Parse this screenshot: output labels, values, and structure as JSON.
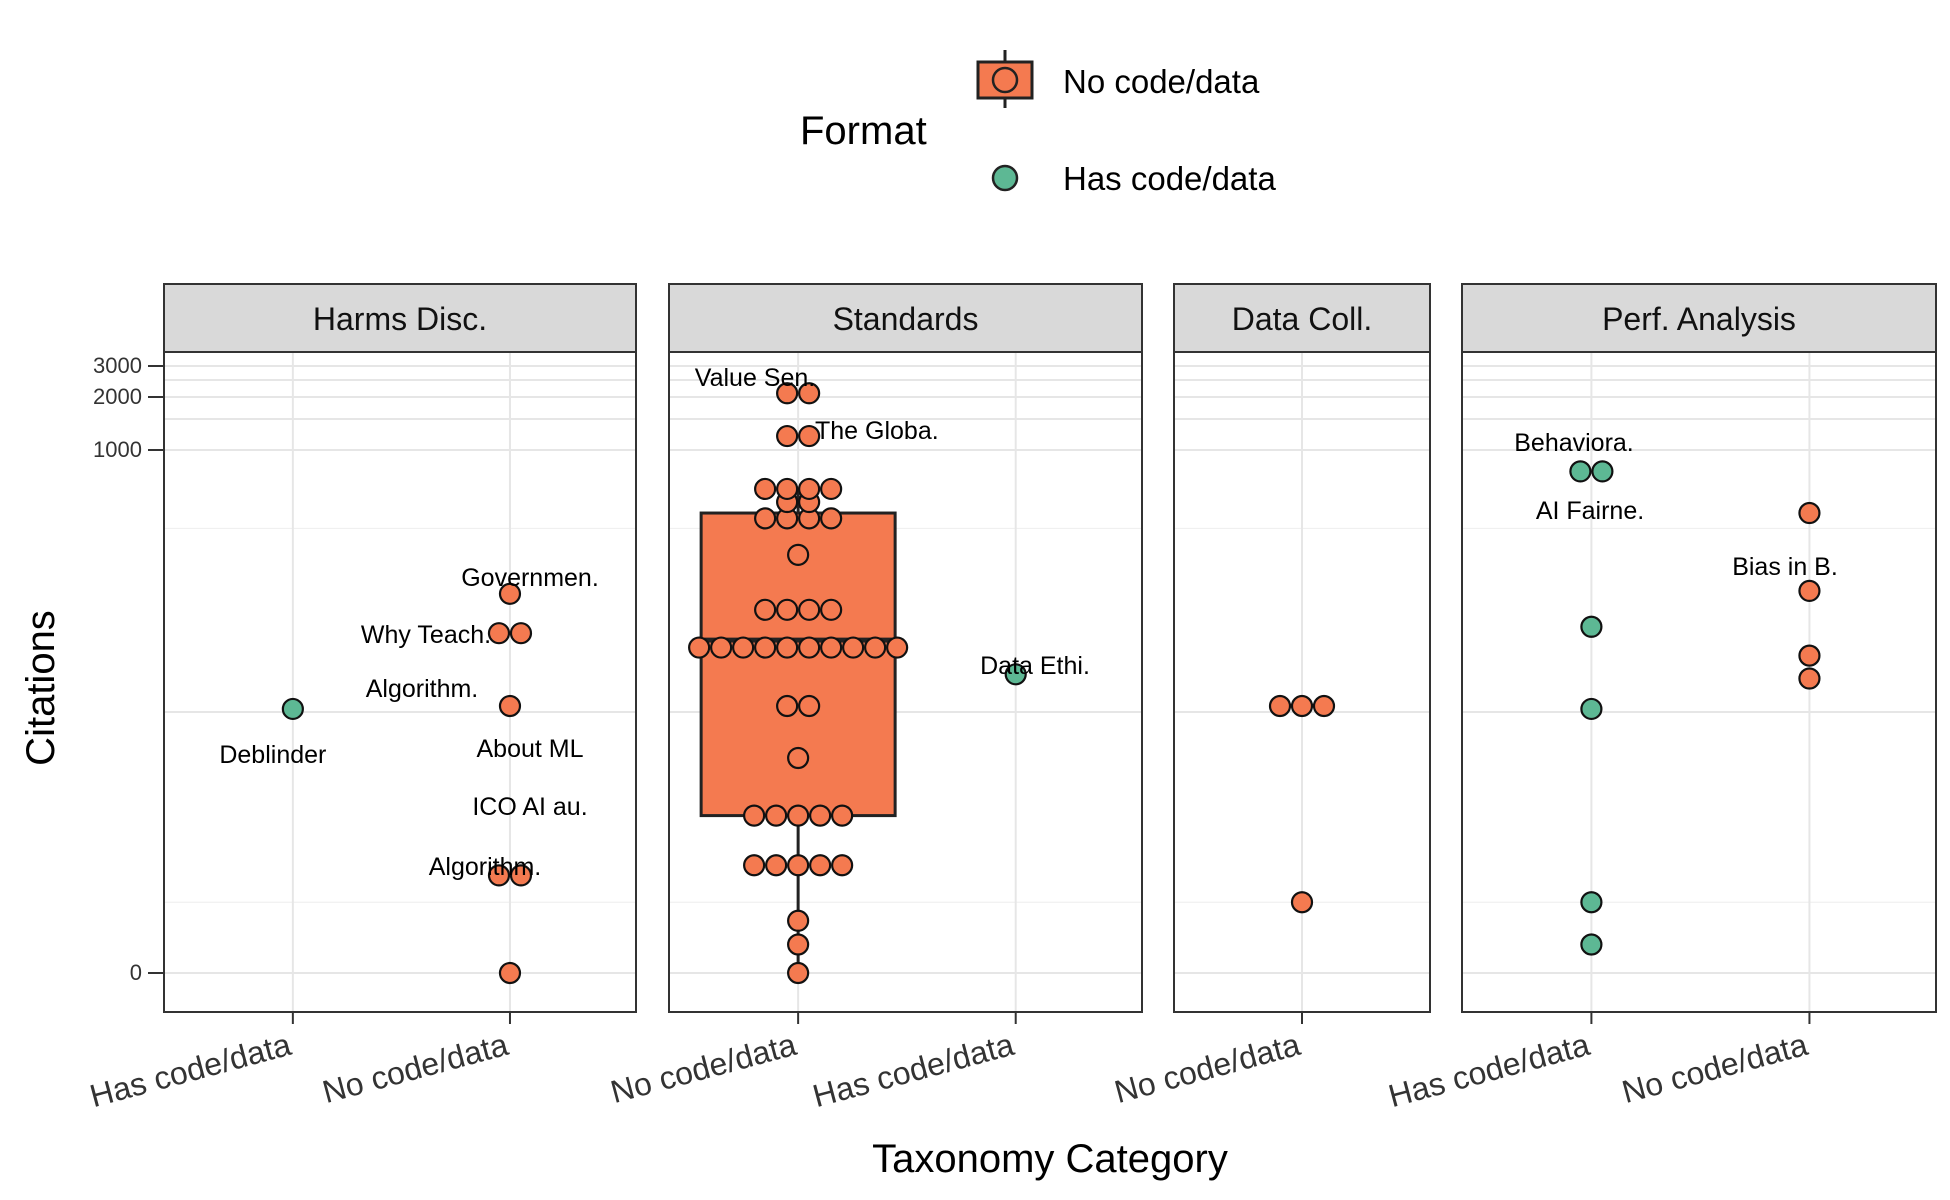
{
  "chart_data": {
    "type": "scatter",
    "xlabel": "Taxonomy Category",
    "ylabel": "Citations",
    "y_scale": "pseudo-log (0, then 1000–3000 near top)",
    "y_ticks": [
      "0",
      "1000",
      "2000",
      "3000"
    ],
    "legend": {
      "title": "Format",
      "position": "top",
      "entries": [
        {
          "label": "No code/data",
          "color": "#F47A50",
          "marker": "boxplot with circle"
        },
        {
          "label": "Has code/data",
          "color": "#5DB894",
          "marker": "circle"
        }
      ]
    },
    "facets": [
      {
        "title": "Harms Disc.",
        "categories": [
          "Has code/data",
          "No code/data"
        ],
        "groups": [
          {
            "format": "Has code/data",
            "values": [
              31
            ]
          },
          {
            "format": "No code/data",
            "values": [
              110,
              70,
              70,
              32,
              5,
              5,
              0
            ]
          }
        ],
        "annotations": [
          "Deblinder",
          "Governmen.",
          "Why Teach.",
          "Algorithm.",
          "About ML",
          "ICO AI au.",
          "Algorithm."
        ]
      },
      {
        "title": "Standards",
        "categories": [
          "No code/data",
          "Has code/data"
        ],
        "groups": [
          {
            "format": "No code/data",
            "values": [
              2100,
              2100,
              1200,
              1200,
              550,
              550,
              550,
              550,
              450,
              450,
              350,
              350,
              350,
              350,
              200,
              90,
              90,
              90,
              90,
              60,
              60,
              60,
              60,
              60,
              60,
              60,
              60,
              60,
              60,
              32,
              32,
              20,
              12,
              12,
              12,
              12,
              12,
              6,
              6,
              6,
              6,
              6,
              2,
              1,
              0
            ]
          },
          {
            "format": "Has code/data",
            "values": [
              45
            ]
          }
        ],
        "boxplot": {
          "format": "No code/data",
          "q1": 12,
          "median": 65,
          "q3": 380,
          "whisker_low": 0,
          "whisker_high": 560
        },
        "annotations": [
          "Value Sen.",
          "The Globa.",
          "Data Ethi."
        ]
      },
      {
        "title": "Data Coll.",
        "categories": [
          "No code/data"
        ],
        "groups": [
          {
            "format": "No code/data",
            "values": [
              32,
              32,
              32,
              3
            ]
          }
        ],
        "annotations": []
      },
      {
        "title": "Perf. Analysis",
        "categories": [
          "Has code/data",
          "No code/data"
        ],
        "groups": [
          {
            "format": "Has code/data",
            "values": [
              720,
              720,
              75,
              31,
              3,
              1
            ]
          },
          {
            "format": "No code/data",
            "values": [
              380,
              115,
              55,
              43
            ]
          }
        ],
        "annotations": [
          "Behaviora.",
          "AI Fairne.",
          "Bias in B."
        ]
      }
    ]
  }
}
